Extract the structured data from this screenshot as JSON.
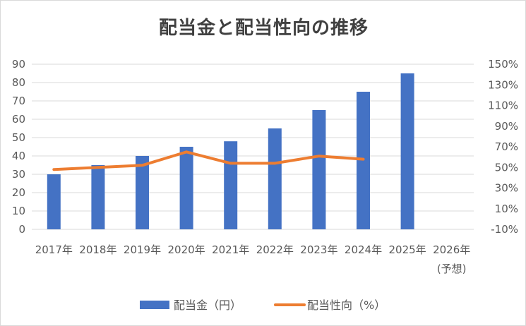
{
  "chart_data": {
    "type": "bar",
    "title": "配当金と配当性向の推移",
    "categories": [
      "2017年",
      "2018年",
      "2019年",
      "2020年",
      "2021年",
      "2022年",
      "2023年",
      "2024年",
      "2025年",
      "2026年"
    ],
    "category_sublabels": [
      "",
      "",
      "",
      "",
      "",
      "",
      "",
      "",
      "",
      "(予想)"
    ],
    "series": [
      {
        "name": "配当金（円）",
        "type": "bar",
        "axis": "left",
        "color": "#4472c4",
        "values": [
          30,
          35,
          40,
          45,
          48,
          55,
          65,
          75,
          85,
          null
        ]
      },
      {
        "name": "配当性向（%）",
        "type": "line",
        "axis": "right",
        "color": "#ed7d31",
        "values": [
          48,
          50,
          52,
          65,
          54,
          54,
          61,
          58,
          null,
          null
        ]
      }
    ],
    "y_left": {
      "min": 0,
      "max": 90,
      "step": 10,
      "ticks": [
        "0",
        "10",
        "20",
        "30",
        "40",
        "50",
        "60",
        "70",
        "80",
        "90"
      ]
    },
    "y_right": {
      "min": -10,
      "max": 150,
      "step": 20,
      "ticks": [
        "-10%",
        "10%",
        "30%",
        "50%",
        "70%",
        "90%",
        "110%",
        "130%",
        "150%"
      ]
    },
    "grid": true,
    "legend_position": "bottom"
  }
}
